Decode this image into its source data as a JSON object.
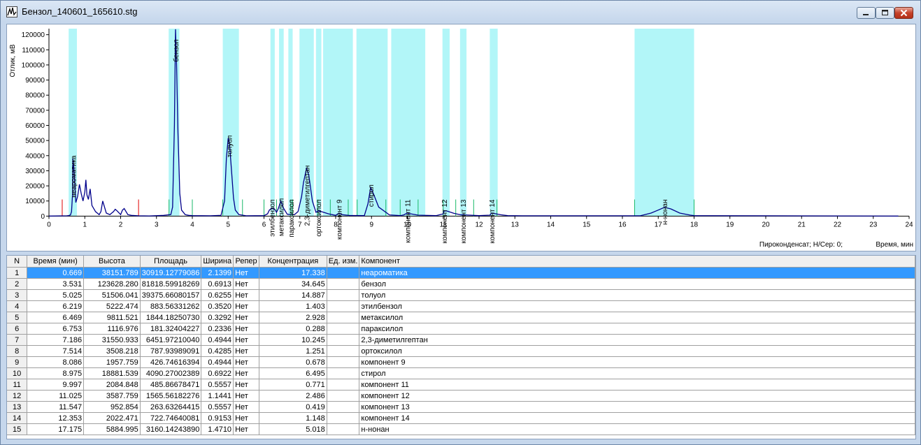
{
  "window": {
    "title": "Бензол_140601_165610.stg",
    "colors": {
      "frame": "#c6d7ec",
      "selection": "#3399ff",
      "window_band": "#b2f6f8",
      "trace": "#00008b",
      "marker_red": "#e00000",
      "marker_green": "#18b868"
    }
  },
  "chart_data": {
    "type": "line",
    "ylabel": "Отлик, мВ",
    "xlabel": "Время, мин",
    "footer": "Пироконденсат;   Н/Сер: 0;",
    "xlim": [
      0,
      24
    ],
    "ylim": [
      -4000,
      124000
    ],
    "x_ticks": [
      "0",
      "1",
      "2",
      "3",
      "4",
      "5",
      "6",
      "7",
      "8",
      "9",
      "10",
      "11",
      "12",
      "13",
      "14",
      "15",
      "16",
      "17",
      "18",
      "19",
      "20",
      "21",
      "22",
      "23",
      "24"
    ],
    "y_ticks": [
      "0",
      "10000",
      "20000",
      "30000",
      "40000",
      "50000",
      "60000",
      "70000",
      "80000",
      "90000",
      "100000",
      "110000",
      "120000"
    ],
    "series": [
      {
        "x": [
          0,
          0.5,
          0.55,
          0.6,
          0.63,
          0.66,
          0.669,
          0.7,
          0.75,
          0.8,
          0.85,
          0.9,
          0.95,
          1.0,
          1.03,
          1.06,
          1.1,
          1.15,
          1.2,
          1.3,
          1.4,
          1.45,
          1.5,
          1.6,
          1.7,
          1.8,
          1.85,
          1.9,
          2.0,
          2.05,
          2.1,
          2.2,
          2.3,
          2.5,
          2.8,
          3.2,
          3.4,
          3.45,
          3.5,
          3.531,
          3.56,
          3.6,
          3.65,
          3.7,
          3.8,
          3.9,
          4.0,
          4.5,
          4.8,
          4.9,
          4.95,
          5.0,
          5.025,
          5.05,
          5.1,
          5.15,
          5.2,
          5.3,
          5.5,
          6.0,
          6.1,
          6.15,
          6.219,
          6.3,
          6.35,
          6.4,
          6.469,
          6.55,
          6.65,
          6.753,
          6.85,
          6.95,
          7.05,
          7.1,
          7.186,
          7.25,
          7.35,
          7.45,
          7.514,
          7.6,
          7.8,
          8.0,
          8.086,
          8.2,
          8.4,
          8.8,
          8.9,
          8.975,
          9.05,
          9.2,
          9.5,
          9.8,
          9.9,
          9.997,
          10.1,
          10.3,
          10.8,
          11.0,
          11.025,
          11.1,
          11.3,
          11.5,
          11.547,
          11.6,
          12.0,
          12.3,
          12.353,
          12.4,
          12.6,
          12.8,
          13.2,
          16.5,
          16.8,
          17.0,
          17.175,
          17.35,
          17.6,
          17.9,
          18.0,
          20.0,
          23.7
        ],
        "y": [
          0,
          200,
          300,
          800,
          3000,
          15000,
          38000,
          30000,
          9000,
          13000,
          21000,
          15000,
          10000,
          16000,
          24000,
          14000,
          11000,
          18000,
          7000,
          3000,
          1000,
          3000,
          10000,
          2000,
          1000,
          3000,
          4500,
          3500,
          1000,
          4000,
          5000,
          1000,
          500,
          200,
          100,
          500,
          1000,
          6000,
          60000,
          123600,
          100000,
          55000,
          15000,
          4000,
          1000,
          500,
          300,
          200,
          500,
          10000,
          38000,
          51500,
          50000,
          44000,
          28000,
          12000,
          4000,
          1000,
          200,
          300,
          1500,
          4000,
          5200,
          4500,
          2500,
          5000,
          9800,
          5000,
          1200,
          1100,
          1000,
          3000,
          13000,
          22000,
          31500,
          27000,
          10000,
          2500,
          3500,
          3000,
          1500,
          500,
          1900,
          900,
          400,
          300,
          8000,
          18800,
          15000,
          6000,
          800,
          300,
          800,
          2000,
          1500,
          600,
          300,
          1500,
          3500,
          3400,
          1800,
          800,
          950,
          800,
          300,
          600,
          2000,
          1800,
          900,
          300,
          200,
          200,
          2000,
          4000,
          5800,
          4800,
          2000,
          600,
          300,
          200,
          0
        ]
      }
    ],
    "windows": [
      [
        0.55,
        0.78
      ],
      [
        3.34,
        3.64
      ],
      [
        4.85,
        5.3
      ],
      [
        6.18,
        6.3
      ],
      [
        6.42,
        6.55
      ],
      [
        6.68,
        6.8
      ],
      [
        6.99,
        7.39
      ],
      [
        7.45,
        7.6
      ],
      [
        7.65,
        8.48
      ],
      [
        8.58,
        9.45
      ],
      [
        9.55,
        10.5
      ],
      [
        10.98,
        11.18
      ],
      [
        11.47,
        11.65
      ],
      [
        12.3,
        12.52
      ],
      [
        16.34,
        18.0
      ]
    ],
    "red_markers": [
      0.37,
      2.5
    ],
    "green_markers": [
      3.35,
      4.0,
      4.85,
      5.4,
      6.0,
      6.35,
      6.75,
      6.8,
      7.5,
      7.85,
      8.35,
      8.6,
      9.4,
      9.8,
      10.3,
      11.0,
      11.35,
      11.85,
      12.5,
      16.34,
      18.0
    ],
    "peak_labels": [
      {
        "text": "неароматика",
        "x": 0.669,
        "y": 38151.789
      },
      {
        "text": "бензол",
        "x": 3.531,
        "y": 123628.28
      },
      {
        "text": "толуол",
        "x": 5.025,
        "y": 51506.041
      },
      {
        "text": "этилбензол",
        "x": 6.219,
        "y": 5222.474
      },
      {
        "text": "метаксилол",
        "x": 6.469,
        "y": 9811.521
      },
      {
        "text": "параксилол",
        "x": 6.753,
        "y": 1116.976
      },
      {
        "text": "2,3-диметилгептан",
        "x": 7.186,
        "y": 31550.933
      },
      {
        "text": "ортоксилол",
        "x": 7.514,
        "y": 3508.218
      },
      {
        "text": "компонент 9",
        "x": 8.086,
        "y": 1957.759
      },
      {
        "text": "стирол",
        "x": 8.975,
        "y": 18881.539
      },
      {
        "text": "компонент 11",
        "x": 9.997,
        "y": 2084.848
      },
      {
        "text": "компонент 12",
        "x": 11.025,
        "y": 3587.759
      },
      {
        "text": "компонент 13",
        "x": 11.547,
        "y": 952.854
      },
      {
        "text": "компонент 14",
        "x": 12.353,
        "y": 2022.471
      },
      {
        "text": "н-нонан",
        "x": 17.175,
        "y": 5884.995
      }
    ]
  },
  "table": {
    "columns": [
      "N",
      "Время (мин)",
      "Высота",
      "Площадь",
      "Ширина",
      "Репер",
      "Концентрация",
      "Ед. изм.",
      "Компонент"
    ],
    "rows": [
      [
        "1",
        "0.669",
        "38151.789",
        "30919.12779086",
        "2.1399",
        "Нет",
        "17.338",
        "",
        "неароматика"
      ],
      [
        "2",
        "3.531",
        "123628.280",
        "81818.59918269",
        "0.6913",
        "Нет",
        "34.645",
        "",
        "бензол"
      ],
      [
        "3",
        "5.025",
        "51506.041",
        "39375.66080157",
        "0.6255",
        "Нет",
        "14.887",
        "",
        "толуол"
      ],
      [
        "4",
        "6.219",
        "5222.474",
        "883.56331262",
        "0.3520",
        "Нет",
        "1.403",
        "",
        "этилбензол"
      ],
      [
        "5",
        "6.469",
        "9811.521",
        "1844.18250730",
        "0.3292",
        "Нет",
        "2.928",
        "",
        "метаксилол"
      ],
      [
        "6",
        "6.753",
        "1116.976",
        "181.32404227",
        "0.2336",
        "Нет",
        "0.288",
        "",
        "параксилол"
      ],
      [
        "7",
        "7.186",
        "31550.933",
        "6451.97210040",
        "0.4944",
        "Нет",
        "10.245",
        "",
        "2,3-диметилгептан"
      ],
      [
        "8",
        "7.514",
        "3508.218",
        "787.93989091",
        "0.4285",
        "Нет",
        "1.251",
        "",
        "ортоксилол"
      ],
      [
        "9",
        "8.086",
        "1957.759",
        "426.74616394",
        "0.4944",
        "Нет",
        "0.678",
        "",
        "компонент 9"
      ],
      [
        "10",
        "8.975",
        "18881.539",
        "4090.27002389",
        "0.6922",
        "Нет",
        "6.495",
        "",
        "стирол"
      ],
      [
        "11",
        "9.997",
        "2084.848",
        "485.86678471",
        "0.5557",
        "Нет",
        "0.771",
        "",
        "компонент 11"
      ],
      [
        "12",
        "11.025",
        "3587.759",
        "1565.56182276",
        "1.1441",
        "Нет",
        "2.486",
        "",
        "компонент 12"
      ],
      [
        "13",
        "11.547",
        "952.854",
        "263.63264415",
        "0.5557",
        "Нет",
        "0.419",
        "",
        "компонент 13"
      ],
      [
        "14",
        "12.353",
        "2022.471",
        "722.74640081",
        "0.9153",
        "Нет",
        "1.148",
        "",
        "компонент 14"
      ],
      [
        "15",
        "17.175",
        "5884.995",
        "3160.14243890",
        "1.4710",
        "Нет",
        "5.018",
        "",
        "н-нонан"
      ]
    ],
    "selected_row": 0
  }
}
